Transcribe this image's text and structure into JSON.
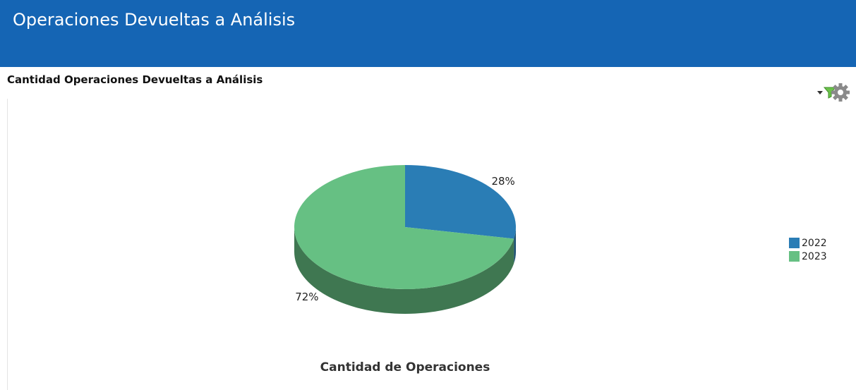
{
  "header": {
    "title": "Operaciones Devueltas a Análisis"
  },
  "chart_data": {
    "type": "pie",
    "title": "Cantidad Operaciones Devueltas a Análisis",
    "categories": [
      "2022",
      "2023"
    ],
    "values": [
      28,
      72
    ],
    "value_labels": [
      "28%",
      "72%"
    ],
    "colors": [
      "#2a7db5",
      "#66c083"
    ],
    "x_label": "Cantidad de Operaciones",
    "legend": "right",
    "3d": true
  }
}
